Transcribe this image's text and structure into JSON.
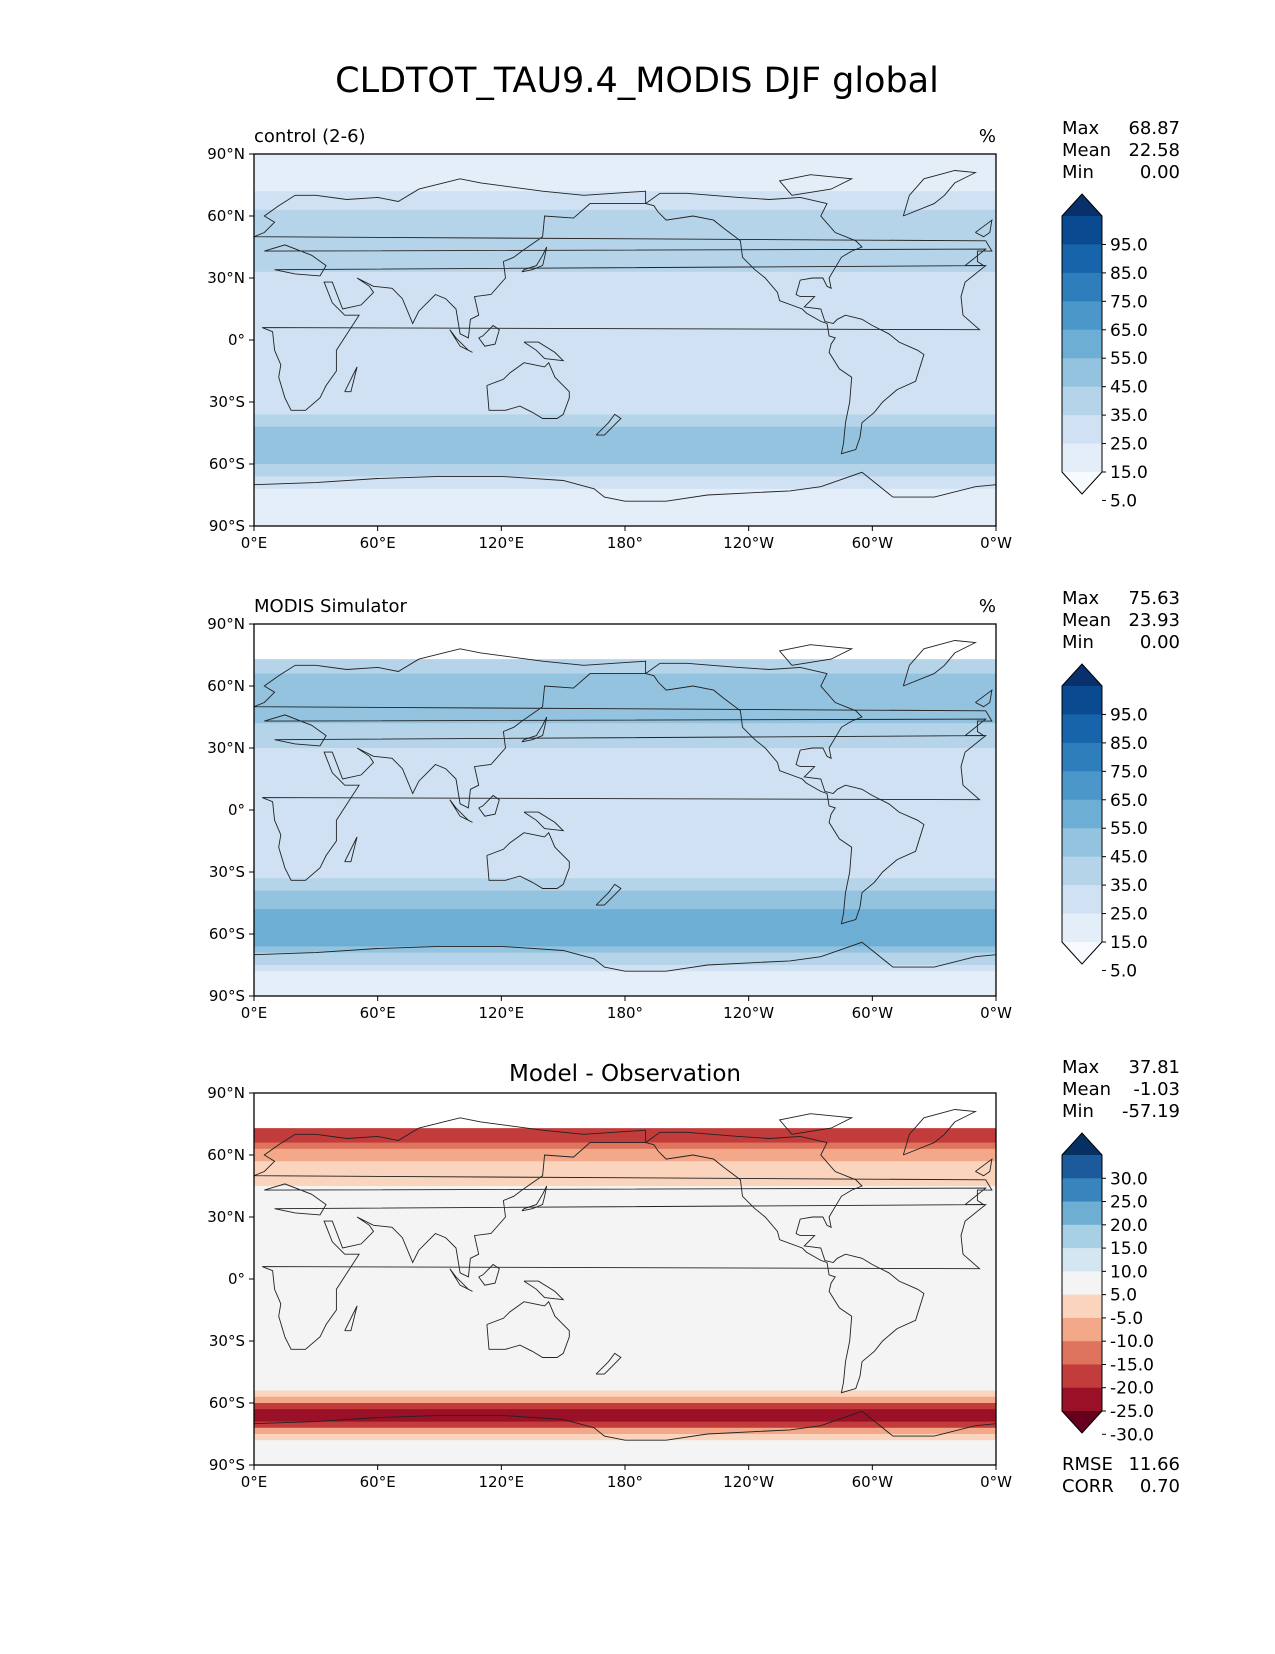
{
  "figure_title": "CLDTOT_TAU9.4_MODIS DJF global",
  "palettes": {
    "blues": [
      "#f7fbff",
      "#e3eef9",
      "#cfe1f2",
      "#b5d4e9",
      "#93c3df",
      "#6daed5",
      "#4b97c9",
      "#2f7ebc",
      "#1864aa",
      "#0a4a90",
      "#08306b"
    ],
    "diff": [
      "#67001f",
      "#9a1127",
      "#c33c3c",
      "#df745e",
      "#f2a889",
      "#fbd4be",
      "#f4f4f4",
      "#d4e6f1",
      "#a8d0e5",
      "#6eaed2",
      "#3785bc",
      "#1b5a9b",
      "#053061"
    ]
  },
  "panels": [
    {
      "id": "control",
      "left_title": "control (2-6)",
      "right_title": "%",
      "center_title": "",
      "stats": [
        {
          "label": "Max",
          "value": "68.87"
        },
        {
          "label": "Mean",
          "value": "22.58"
        },
        {
          "label": "Min",
          "value": "0.00"
        }
      ],
      "colorbar_ticks": [
        "95.0",
        "85.0",
        "75.0",
        "65.0",
        "55.0",
        "45.0",
        "35.0",
        "25.0",
        "15.0",
        "5.0"
      ],
      "palette": "blues",
      "metrics": []
    },
    {
      "id": "obs",
      "left_title": "MODIS Simulator",
      "right_title": "%",
      "center_title": "",
      "stats": [
        {
          "label": "Max",
          "value": "75.63"
        },
        {
          "label": "Mean",
          "value": "23.93"
        },
        {
          "label": "Min",
          "value": "0.00"
        }
      ],
      "colorbar_ticks": [
        "95.0",
        "85.0",
        "75.0",
        "65.0",
        "55.0",
        "45.0",
        "35.0",
        "25.0",
        "15.0",
        "5.0"
      ],
      "palette": "blues",
      "metrics": []
    },
    {
      "id": "diff",
      "left_title": "",
      "right_title": "",
      "center_title": "Model - Observation",
      "stats": [
        {
          "label": "Max",
          "value": "37.81"
        },
        {
          "label": "Mean",
          "value": "-1.03"
        },
        {
          "label": "Min",
          "value": "-57.19"
        }
      ],
      "colorbar_ticks": [
        "30.0",
        "25.0",
        "20.0",
        "15.0",
        "10.0",
        "5.0",
        "-5.0",
        "-10.0",
        "-15.0",
        "-20.0",
        "-25.0",
        "-30.0"
      ],
      "palette": "diff",
      "metrics": [
        {
          "label": "RMSE",
          "value": "11.66"
        },
        {
          "label": "CORR",
          "value": "0.70"
        }
      ]
    }
  ],
  "chart_data": [
    {
      "type": "heatmap",
      "title": "control (2-6)",
      "units": "%",
      "x_ticks": [
        "0°E",
        "60°E",
        "120°E",
        "180°",
        "120°W",
        "60°W",
        "0°W"
      ],
      "y_ticks": [
        "90°N",
        "60°N",
        "30°N",
        "0°",
        "30°S",
        "60°S",
        "90°S"
      ],
      "xlim": [
        0,
        360
      ],
      "ylim": [
        -90,
        90
      ],
      "levels": [
        5,
        15,
        25,
        35,
        45,
        55,
        65,
        75,
        85,
        95
      ],
      "zonal_mean_profile": [
        {
          "lat": 80,
          "value": 5
        },
        {
          "lat": 60,
          "value": 30
        },
        {
          "lat": 45,
          "value": 35
        },
        {
          "lat": 30,
          "value": 22
        },
        {
          "lat": 15,
          "value": 15
        },
        {
          "lat": 0,
          "value": 20
        },
        {
          "lat": -15,
          "value": 16
        },
        {
          "lat": -30,
          "value": 18
        },
        {
          "lat": -45,
          "value": 40
        },
        {
          "lat": -55,
          "value": 45
        },
        {
          "lat": -65,
          "value": 25
        },
        {
          "lat": -80,
          "value": 5
        }
      ]
    },
    {
      "type": "heatmap",
      "title": "MODIS Simulator",
      "units": "%",
      "x_ticks": [
        "0°E",
        "60°E",
        "120°E",
        "180°",
        "120°W",
        "60°W",
        "0°W"
      ],
      "y_ticks": [
        "90°N",
        "60°N",
        "30°N",
        "0°",
        "30°S",
        "60°S",
        "90°S"
      ],
      "xlim": [
        0,
        360
      ],
      "ylim": [
        -90,
        90
      ],
      "levels": [
        5,
        15,
        25,
        35,
        45,
        55,
        65,
        75,
        85,
        95
      ],
      "zonal_mean_profile": [
        {
          "lat": 72,
          "value": 30
        },
        {
          "lat": 60,
          "value": 38
        },
        {
          "lat": 45,
          "value": 38
        },
        {
          "lat": 30,
          "value": 25
        },
        {
          "lat": 15,
          "value": 15
        },
        {
          "lat": 0,
          "value": 22
        },
        {
          "lat": -15,
          "value": 17
        },
        {
          "lat": -30,
          "value": 20
        },
        {
          "lat": -45,
          "value": 42
        },
        {
          "lat": -55,
          "value": 52
        },
        {
          "lat": -65,
          "value": 48
        },
        {
          "lat": -80,
          "value": 12
        }
      ]
    },
    {
      "type": "heatmap",
      "title": "Model - Observation",
      "units": "%",
      "x_ticks": [
        "0°E",
        "60°E",
        "120°E",
        "180°",
        "120°W",
        "60°W",
        "0°W"
      ],
      "y_ticks": [
        "90°N",
        "60°N",
        "30°N",
        "0°",
        "30°S",
        "60°S",
        "90°S"
      ],
      "xlim": [
        0,
        360
      ],
      "ylim": [
        -90,
        90
      ],
      "levels": [
        -30,
        -25,
        -20,
        -15,
        -10,
        -5,
        5,
        10,
        15,
        20,
        25,
        30
      ],
      "zonal_mean_profile": [
        {
          "lat": 70,
          "value": -25
        },
        {
          "lat": 60,
          "value": -12
        },
        {
          "lat": 45,
          "value": -5
        },
        {
          "lat": 30,
          "value": 0
        },
        {
          "lat": 15,
          "value": 5
        },
        {
          "lat": 0,
          "value": 4
        },
        {
          "lat": -15,
          "value": 3
        },
        {
          "lat": -30,
          "value": 0
        },
        {
          "lat": -45,
          "value": 5
        },
        {
          "lat": -55,
          "value": -5
        },
        {
          "lat": -65,
          "value": -30
        },
        {
          "lat": -80,
          "value": -3
        }
      ]
    }
  ]
}
